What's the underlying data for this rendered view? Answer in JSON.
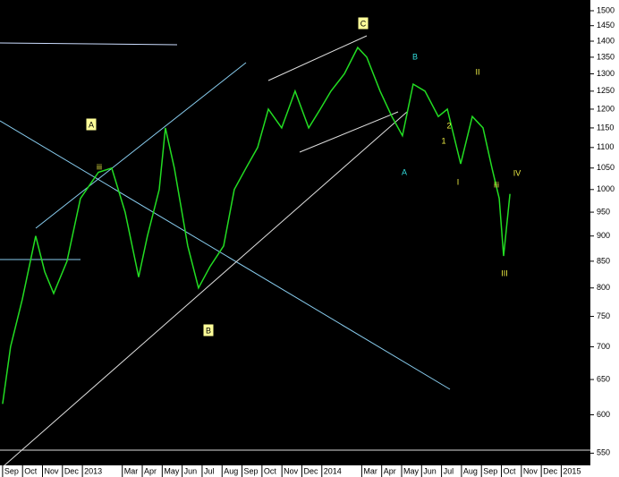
{
  "chart_data": {
    "type": "line",
    "color": "#22dd22",
    "log_scale": true,
    "grid": false,
    "x": [
      0,
      0.4,
      0.99,
      1.66,
      2.11,
      2.56,
      3.23,
      3.9,
      4.8,
      5.47,
      6.14,
      6.82,
      7.26,
      7.85,
      8.16,
      8.61,
      9.28,
      9.82,
      10.4,
      11.08,
      11.61,
      12.2,
      12.78,
      13.32,
      13.99,
      14.66,
      15.34,
      15.92,
      16.46,
      17.13,
      17.8,
      18.25,
      18.92,
      19.51,
      20.04,
      20.58,
      21.17,
      21.84,
      22.29,
      22.96,
      23.54,
      24.08,
      24.53,
      24.89,
      25.11,
      25.43
    ],
    "values": [
      615,
      700,
      780,
      900,
      830,
      790,
      850,
      980,
      1040,
      1050,
      950,
      820,
      900,
      1000,
      1150,
      1050,
      880,
      800,
      840,
      880,
      1000,
      1050,
      1100,
      1200,
      1150,
      1250,
      1150,
      1200,
      1250,
      1300,
      1380,
      1350,
      1250,
      1180,
      1130,
      1270,
      1250,
      1180,
      1200,
      1060,
      1180,
      1150,
      1050,
      980,
      860,
      990
    ],
    "xlim": [
      -0.13,
      29.46
    ],
    "xticks": [
      {
        "value": 0,
        "label": "Sep"
      },
      {
        "value": 1,
        "label": "Oct"
      },
      {
        "value": 2,
        "label": "Nov"
      },
      {
        "value": 3,
        "label": "Dec"
      },
      {
        "value": 4,
        "label": "2013"
      },
      {
        "value": 6,
        "label": "Mar"
      },
      {
        "value": 7,
        "label": "Apr"
      },
      {
        "value": 8,
        "label": "May"
      },
      {
        "value": 9,
        "label": "Jun"
      },
      {
        "value": 10,
        "label": "Jul"
      },
      {
        "value": 11,
        "label": "Aug"
      },
      {
        "value": 12,
        "label": "Sep"
      },
      {
        "value": 13,
        "label": "Oct"
      },
      {
        "value": 14,
        "label": "Nov"
      },
      {
        "value": 15,
        "label": "Dec"
      },
      {
        "value": 16,
        "label": "2014"
      },
      {
        "value": 18,
        "label": "Mar"
      },
      {
        "value": 19,
        "label": "Apr"
      },
      {
        "value": 20,
        "label": "May"
      },
      {
        "value": 21,
        "label": "Jun"
      },
      {
        "value": 22,
        "label": "Jul"
      },
      {
        "value": 23,
        "label": "Aug"
      },
      {
        "value": 24,
        "label": "Sep"
      },
      {
        "value": 25,
        "label": "Oct"
      },
      {
        "value": 26,
        "label": "Nov"
      },
      {
        "value": 27,
        "label": "Dec"
      },
      {
        "value": 28,
        "label": "2015"
      }
    ],
    "ylim": [
      535,
      1537
    ],
    "yticks": [
      550,
      600,
      650,
      700,
      750,
      800,
      850,
      900,
      950,
      1000,
      1050,
      1100,
      1150,
      1200,
      1250,
      1300,
      1350,
      1400,
      1450,
      1500
    ],
    "annotations": [
      {
        "text": "A",
        "color": "#000000",
        "box": true
      },
      {
        "text": "B",
        "color": "#000000",
        "box": true
      },
      {
        "text": "C",
        "color": "#000000",
        "box": true
      },
      {
        "text": "B",
        "color": "#33dddd",
        "box": false
      },
      {
        "text": "A",
        "color": "#33dddd",
        "box": false
      },
      {
        "text": "iii",
        "color": "#eeee44",
        "box": false
      },
      {
        "text": "II",
        "color": "#eeee44",
        "box": false
      },
      {
        "text": "III",
        "color": "#eeee44",
        "box": false
      },
      {
        "text": "IV",
        "color": "#eeee44",
        "box": false
      },
      {
        "text": "I",
        "color": "#eeee44",
        "box": false
      },
      {
        "text": "1",
        "color": "#eeee44",
        "box": false
      },
      {
        "text": "2",
        "color": "#eeee44",
        "box": false
      },
      {
        "text": "iii",
        "color": "#eeee44",
        "box": false
      }
    ]
  }
}
